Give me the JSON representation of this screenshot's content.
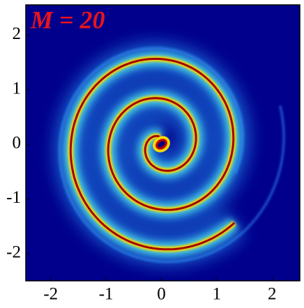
{
  "chart_data": {
    "type": "heatmap",
    "annotation": "M = 20",
    "xlim": [
      -2.45,
      2.5
    ],
    "ylim": [
      -2.5,
      2.55
    ],
    "xticks": [
      -2,
      -1,
      0,
      1,
      2
    ],
    "yticks": [
      -2,
      -1,
      0,
      1,
      2
    ],
    "grid": false
  }
}
